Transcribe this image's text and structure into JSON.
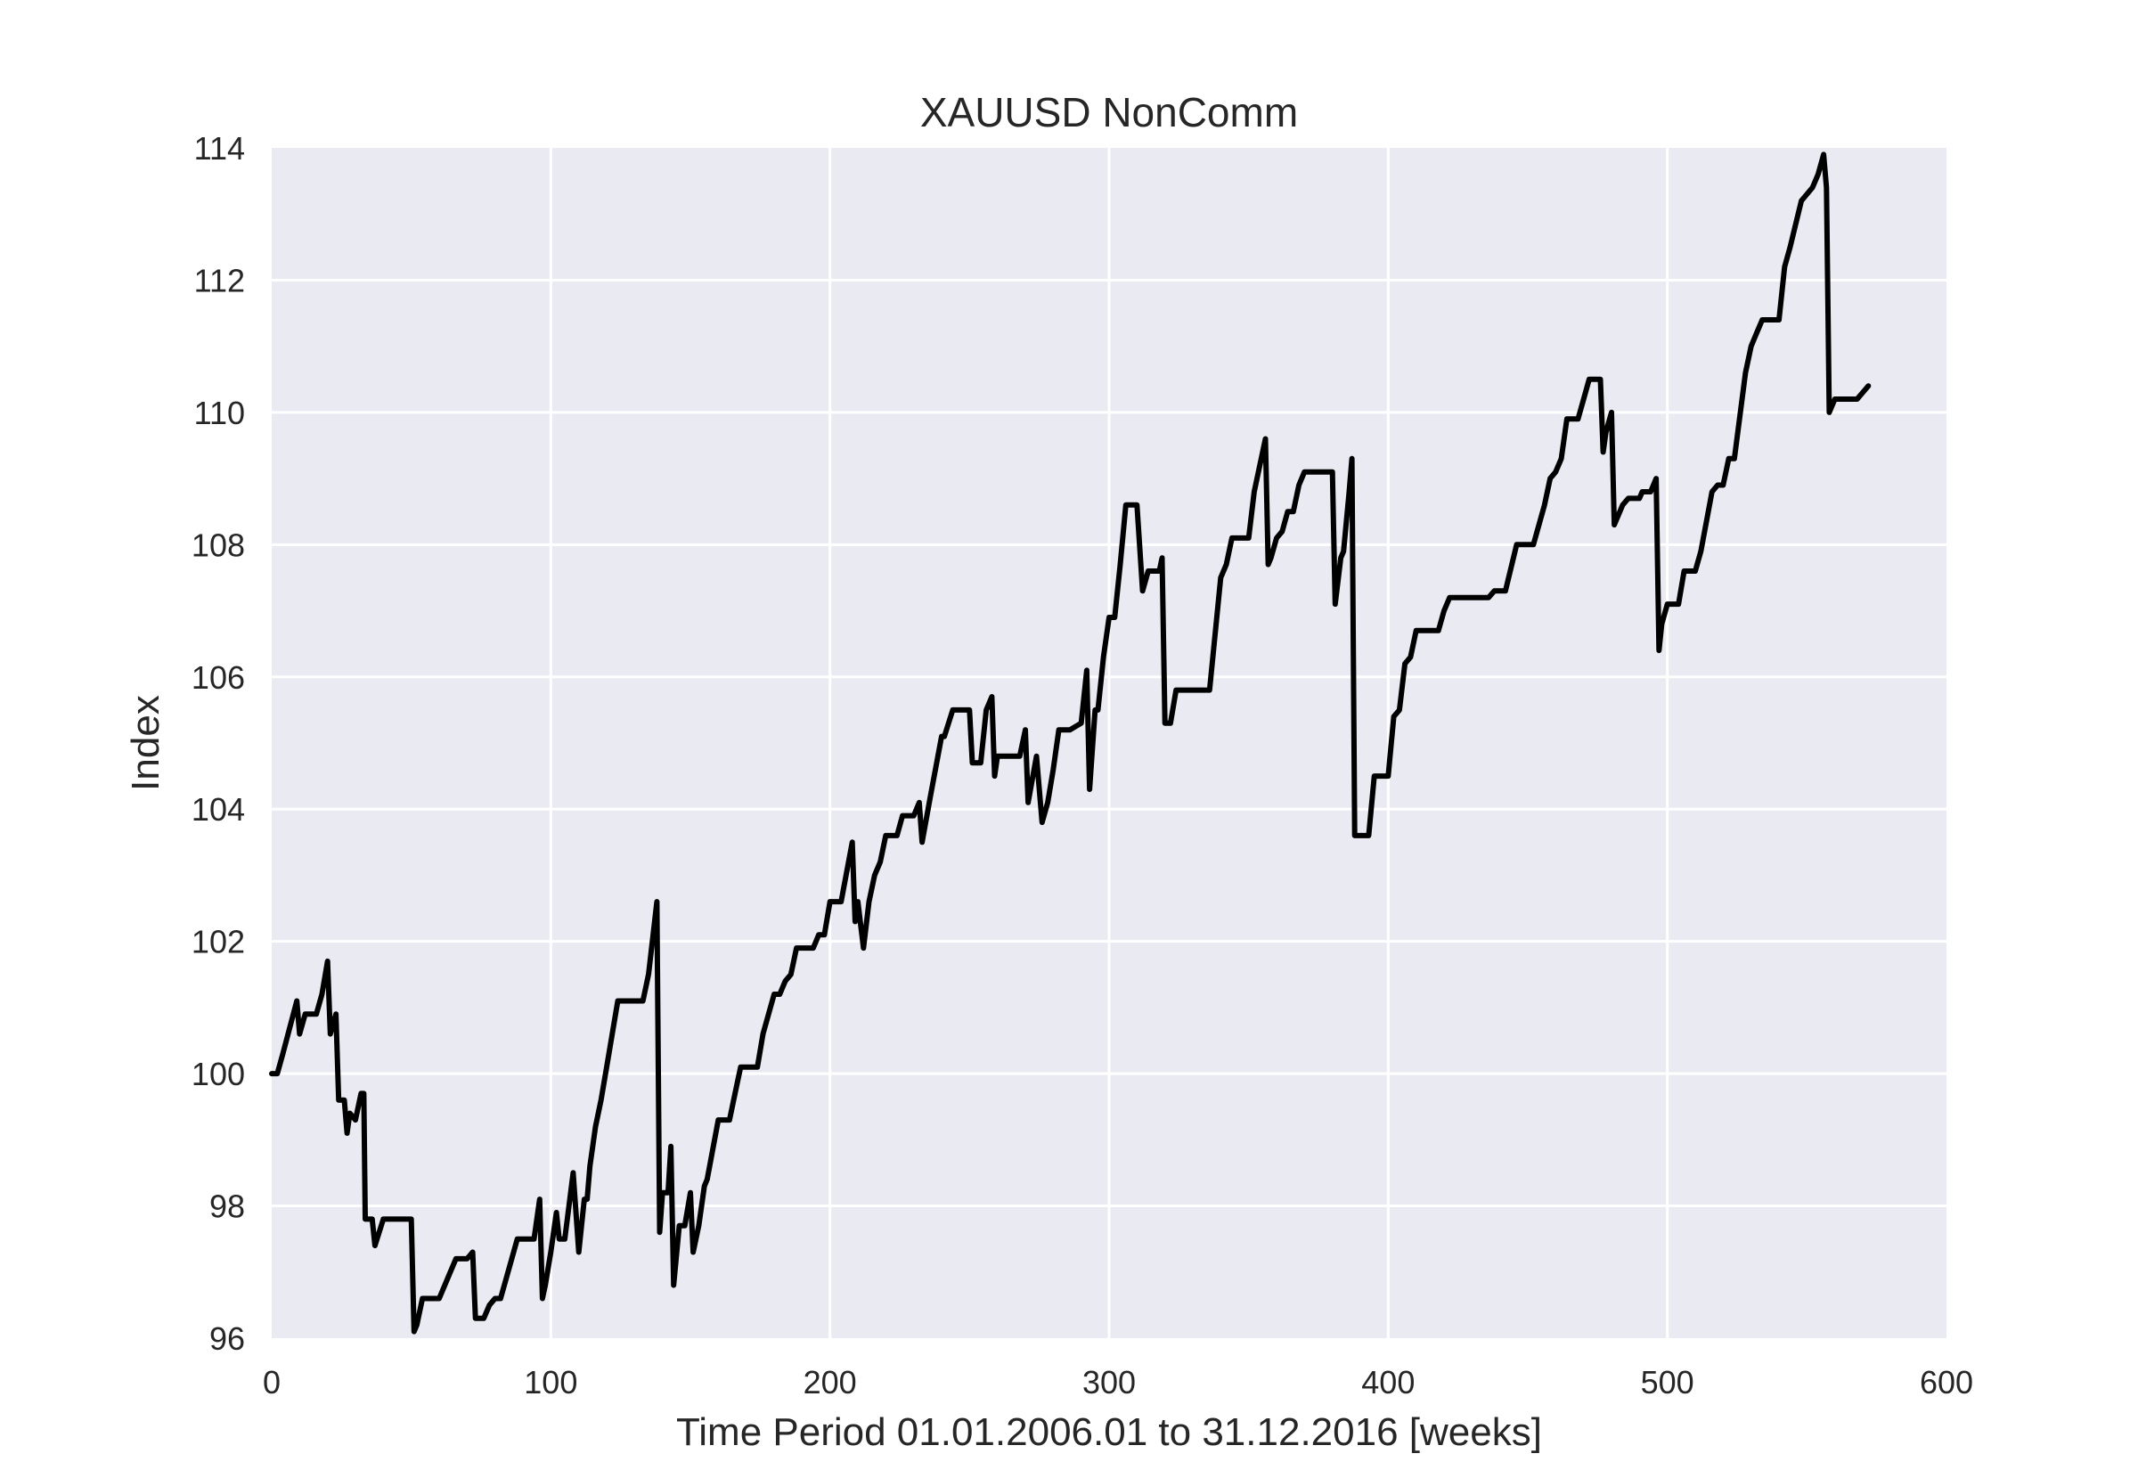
{
  "chart_data": {
    "type": "line",
    "title": "XAUUSD NonComm",
    "xlabel": "Time Period 01.01.2006.01 to 31.12.2016 [weeks]",
    "ylabel": "Index",
    "xlim": [
      0,
      600
    ],
    "ylim": [
      96,
      114
    ],
    "xticks": [
      0,
      100,
      200,
      300,
      400,
      500,
      600
    ],
    "yticks": [
      96,
      98,
      100,
      102,
      104,
      106,
      108,
      110,
      112,
      114
    ],
    "grid": true,
    "colors": {
      "line": "#000000",
      "background": "#EAEAF2",
      "grid": "#FFFFFF"
    },
    "series": [
      {
        "points": [
          [
            0,
            100.0
          ],
          [
            2,
            100.0
          ],
          [
            4,
            100.3
          ],
          [
            9,
            101.1
          ],
          [
            10,
            100.6
          ],
          [
            12,
            100.9
          ],
          [
            16,
            100.9
          ],
          [
            18,
            101.2
          ],
          [
            20,
            101.7
          ],
          [
            21,
            100.6
          ],
          [
            23,
            100.9
          ],
          [
            24,
            99.6
          ],
          [
            26,
            99.6
          ],
          [
            27,
            99.1
          ],
          [
            28,
            99.4
          ],
          [
            30,
            99.3
          ],
          [
            32,
            99.7
          ],
          [
            33,
            99.7
          ],
          [
            33.5,
            97.8
          ],
          [
            36,
            97.8
          ],
          [
            37,
            97.4
          ],
          [
            40,
            97.8
          ],
          [
            48,
            97.8
          ],
          [
            50,
            97.8
          ],
          [
            51,
            96.1
          ],
          [
            52,
            96.2
          ],
          [
            54,
            96.6
          ],
          [
            60,
            96.6
          ],
          [
            62,
            96.8
          ],
          [
            64,
            97.0
          ],
          [
            66,
            97.2
          ],
          [
            70,
            97.2
          ],
          [
            72,
            97.3
          ],
          [
            73,
            96.3
          ],
          [
            76,
            96.3
          ],
          [
            78,
            96.5
          ],
          [
            80,
            96.6
          ],
          [
            82,
            96.6
          ],
          [
            84,
            96.9
          ],
          [
            88,
            97.5
          ],
          [
            94,
            97.5
          ],
          [
            96,
            98.1
          ],
          [
            97,
            96.6
          ],
          [
            98,
            96.8
          ],
          [
            100,
            97.3
          ],
          [
            102,
            97.9
          ],
          [
            103,
            97.5
          ],
          [
            105,
            97.5
          ],
          [
            108,
            98.5
          ],
          [
            110,
            97.3
          ],
          [
            112,
            98.1
          ],
          [
            113,
            98.1
          ],
          [
            114,
            98.6
          ],
          [
            116,
            99.2
          ],
          [
            118,
            99.6
          ],
          [
            120,
            100.1
          ],
          [
            124,
            101.1
          ],
          [
            126,
            101.1
          ],
          [
            133,
            101.1
          ],
          [
            135,
            101.5
          ],
          [
            138,
            102.6
          ],
          [
            139,
            97.6
          ],
          [
            140,
            98.2
          ],
          [
            142,
            98.2
          ],
          [
            143,
            98.9
          ],
          [
            144,
            96.8
          ],
          [
            146,
            97.7
          ],
          [
            148,
            97.7
          ],
          [
            150,
            98.2
          ],
          [
            151,
            97.3
          ],
          [
            153,
            97.7
          ],
          [
            155,
            98.3
          ],
          [
            156,
            98.4
          ],
          [
            160,
            99.3
          ],
          [
            164,
            99.3
          ],
          [
            166,
            99.7
          ],
          [
            168,
            100.1
          ],
          [
            174,
            100.1
          ],
          [
            176,
            100.6
          ],
          [
            180,
            101.2
          ],
          [
            182,
            101.2
          ],
          [
            184,
            101.4
          ],
          [
            186,
            101.5
          ],
          [
            188,
            101.9
          ],
          [
            194,
            101.9
          ],
          [
            196,
            102.1
          ],
          [
            198,
            102.1
          ],
          [
            200,
            102.6
          ],
          [
            204,
            102.6
          ],
          [
            208,
            103.5
          ],
          [
            209,
            102.3
          ],
          [
            210,
            102.6
          ],
          [
            212,
            101.9
          ],
          [
            214,
            102.6
          ],
          [
            216,
            103.0
          ],
          [
            218,
            103.2
          ],
          [
            220,
            103.6
          ],
          [
            224,
            103.6
          ],
          [
            226,
            103.9
          ],
          [
            230,
            103.9
          ],
          [
            232,
            104.1
          ],
          [
            233,
            103.5
          ],
          [
            236,
            104.2
          ],
          [
            240,
            105.1
          ],
          [
            241,
            105.1
          ],
          [
            244,
            105.5
          ],
          [
            250,
            105.5
          ],
          [
            251,
            104.7
          ],
          [
            254,
            104.7
          ],
          [
            256,
            105.5
          ],
          [
            258,
            105.7
          ],
          [
            259,
            104.5
          ],
          [
            260,
            104.8
          ],
          [
            268,
            104.8
          ],
          [
            270,
            105.2
          ],
          [
            271,
            104.1
          ],
          [
            274,
            104.8
          ],
          [
            276,
            103.8
          ],
          [
            278,
            104.1
          ],
          [
            280,
            104.6
          ],
          [
            282,
            105.2
          ],
          [
            286,
            105.2
          ],
          [
            290,
            105.3
          ],
          [
            292,
            106.1
          ],
          [
            293,
            104.3
          ],
          [
            295,
            105.5
          ],
          [
            296,
            105.5
          ],
          [
            298,
            106.3
          ],
          [
            300,
            106.9
          ],
          [
            302,
            106.9
          ],
          [
            304,
            107.7
          ],
          [
            306,
            108.6
          ],
          [
            310,
            108.6
          ],
          [
            312,
            107.3
          ],
          [
            314,
            107.6
          ],
          [
            318,
            107.6
          ],
          [
            319,
            107.8
          ],
          [
            320,
            105.3
          ],
          [
            322,
            105.3
          ],
          [
            324,
            105.8
          ],
          [
            336,
            105.8
          ],
          [
            340,
            107.5
          ],
          [
            342,
            107.7
          ],
          [
            344,
            108.1
          ],
          [
            350,
            108.1
          ],
          [
            352,
            108.8
          ],
          [
            356,
            109.6
          ],
          [
            357,
            107.7
          ],
          [
            358,
            107.8
          ],
          [
            360,
            108.1
          ],
          [
            362,
            108.2
          ],
          [
            364,
            108.5
          ],
          [
            366,
            108.5
          ],
          [
            368,
            108.9
          ],
          [
            370,
            109.1
          ],
          [
            380,
            109.1
          ],
          [
            381,
            107.1
          ],
          [
            383,
            107.8
          ],
          [
            384,
            107.9
          ],
          [
            386,
            108.8
          ],
          [
            387,
            109.3
          ],
          [
            388,
            103.6
          ],
          [
            393,
            103.6
          ],
          [
            395,
            104.5
          ],
          [
            400,
            104.5
          ],
          [
            402,
            105.4
          ],
          [
            404,
            105.5
          ],
          [
            406,
            106.2
          ],
          [
            408,
            106.3
          ],
          [
            410,
            106.7
          ],
          [
            418,
            106.7
          ],
          [
            420,
            107.0
          ],
          [
            422,
            107.2
          ],
          [
            436,
            107.2
          ],
          [
            438,
            107.3
          ],
          [
            442,
            107.3
          ],
          [
            446,
            108.0
          ],
          [
            452,
            108.0
          ],
          [
            456,
            108.6
          ],
          [
            458,
            109.0
          ],
          [
            460,
            109.1
          ],
          [
            462,
            109.3
          ],
          [
            464,
            109.9
          ],
          [
            468,
            109.9
          ],
          [
            470,
            110.2
          ],
          [
            472,
            110.5
          ],
          [
            476,
            110.5
          ],
          [
            477,
            109.4
          ],
          [
            478,
            109.7
          ],
          [
            480,
            110.0
          ],
          [
            481,
            108.3
          ],
          [
            484,
            108.6
          ],
          [
            486,
            108.7
          ],
          [
            490,
            108.7
          ],
          [
            491,
            108.8
          ],
          [
            494,
            108.8
          ],
          [
            496,
            109.0
          ],
          [
            497,
            106.4
          ],
          [
            498,
            106.8
          ],
          [
            500,
            107.1
          ],
          [
            504,
            107.1
          ],
          [
            506,
            107.6
          ],
          [
            510,
            107.6
          ],
          [
            512,
            107.9
          ],
          [
            516,
            108.8
          ],
          [
            518,
            108.9
          ],
          [
            520,
            108.9
          ],
          [
            522,
            109.3
          ],
          [
            524,
            109.3
          ],
          [
            528,
            110.6
          ],
          [
            530,
            111.0
          ],
          [
            532,
            111.2
          ],
          [
            534,
            111.4
          ],
          [
            540,
            111.4
          ],
          [
            542,
            112.2
          ],
          [
            544,
            112.5
          ],
          [
            548,
            113.2
          ],
          [
            550,
            113.3
          ],
          [
            552,
            113.4
          ],
          [
            554,
            113.6
          ],
          [
            556,
            113.9
          ],
          [
            557,
            113.4
          ],
          [
            558,
            110.0
          ],
          [
            560,
            110.2
          ],
          [
            568,
            110.2
          ],
          [
            570,
            110.3
          ],
          [
            572,
            110.4
          ]
        ]
      }
    ]
  }
}
